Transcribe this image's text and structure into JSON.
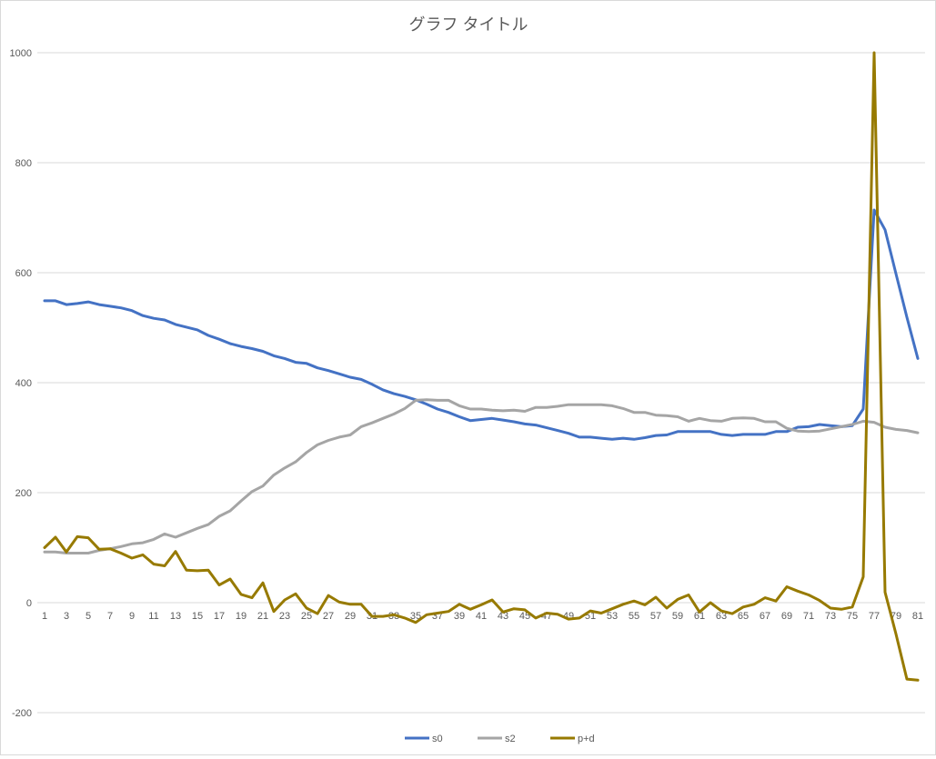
{
  "chart_data": {
    "type": "line",
    "title": "グラフ タイトル",
    "xlabel": "",
    "ylabel": "",
    "ylim": [
      -200,
      1000
    ],
    "yticks": [
      -200,
      0,
      200,
      400,
      600,
      800,
      1000
    ],
    "x": [
      1,
      2,
      3,
      4,
      5,
      6,
      7,
      8,
      9,
      10,
      11,
      12,
      13,
      14,
      15,
      16,
      17,
      18,
      19,
      20,
      21,
      22,
      23,
      24,
      25,
      26,
      27,
      28,
      29,
      30,
      31,
      32,
      33,
      34,
      35,
      36,
      37,
      38,
      39,
      40,
      41,
      42,
      43,
      44,
      45,
      46,
      47,
      48,
      49,
      50,
      51,
      52,
      53,
      54,
      55,
      56,
      57,
      58,
      59,
      60,
      61,
      62,
      63,
      64,
      65,
      66,
      67,
      68,
      69,
      70,
      71,
      72,
      73,
      74,
      75,
      76,
      77,
      78,
      79,
      80,
      81
    ],
    "xticks": [
      1,
      3,
      5,
      7,
      9,
      11,
      13,
      15,
      17,
      19,
      21,
      23,
      25,
      27,
      29,
      31,
      33,
      35,
      37,
      39,
      41,
      43,
      45,
      47,
      49,
      51,
      53,
      55,
      57,
      59,
      61,
      63,
      65,
      67,
      69,
      71,
      73,
      75,
      77,
      79,
      81
    ],
    "grid": true,
    "legend_position": "bottom",
    "series": [
      {
        "name": "s0",
        "color": "#4472c4",
        "values": [
          549,
          549,
          542,
          544,
          547,
          542,
          539,
          536,
          531,
          522,
          517,
          514,
          506,
          501,
          496,
          486,
          479,
          471,
          466,
          462,
          457,
          449,
          444,
          437,
          435,
          427,
          422,
          416,
          410,
          406,
          397,
          387,
          380,
          375,
          369,
          361,
          352,
          346,
          338,
          331,
          333,
          335,
          332,
          329,
          325,
          323,
          318,
          313,
          308,
          301,
          301,
          299,
          297,
          299,
          297,
          300,
          304,
          305,
          311,
          311,
          311,
          311,
          306,
          304,
          306,
          306,
          306,
          311,
          311,
          319,
          320,
          324,
          322,
          320,
          322,
          352,
          714,
          678,
          598,
          519,
          444
        ]
      },
      {
        "name": "s2",
        "color": "#a5a5a5",
        "values": [
          92,
          92,
          90,
          90,
          90,
          95,
          98,
          102,
          107,
          109,
          115,
          125,
          119,
          127,
          135,
          142,
          157,
          167,
          185,
          202,
          212,
          232,
          245,
          256,
          273,
          287,
          295,
          301,
          305,
          320,
          327,
          335,
          343,
          353,
          368,
          369,
          368,
          368,
          358,
          352,
          352,
          350,
          349,
          350,
          348,
          355,
          355,
          357,
          360,
          360,
          360,
          360,
          358,
          353,
          346,
          346,
          341,
          340,
          338,
          330,
          335,
          331,
          330,
          335,
          336,
          335,
          329,
          329,
          317,
          312,
          311,
          312,
          316,
          320,
          324,
          330,
          328,
          319,
          315,
          313,
          309
        ]
      },
      {
        "name": "p+d",
        "color": "#977a00",
        "values": [
          100,
          119,
          92,
          120,
          118,
          97,
          98,
          90,
          81,
          87,
          70,
          67,
          93,
          59,
          58,
          59,
          32,
          43,
          15,
          9,
          36,
          -16,
          5,
          16,
          -10,
          -20,
          13,
          1,
          -3,
          -3,
          -25,
          -25,
          -22,
          -28,
          -36,
          -22,
          -19,
          -16,
          -3,
          -12,
          -4,
          5,
          -17,
          -11,
          -13,
          -28,
          -19,
          -21,
          -30,
          -28,
          -15,
          -19,
          -11,
          -3,
          3,
          -4,
          10,
          -10,
          6,
          14,
          -17,
          0,
          -15,
          -20,
          -8,
          -3,
          9,
          3,
          29,
          21,
          14,
          4,
          -10,
          -12,
          -8,
          47,
          1000,
          19,
          -57,
          -139,
          -141
        ]
      }
    ]
  }
}
